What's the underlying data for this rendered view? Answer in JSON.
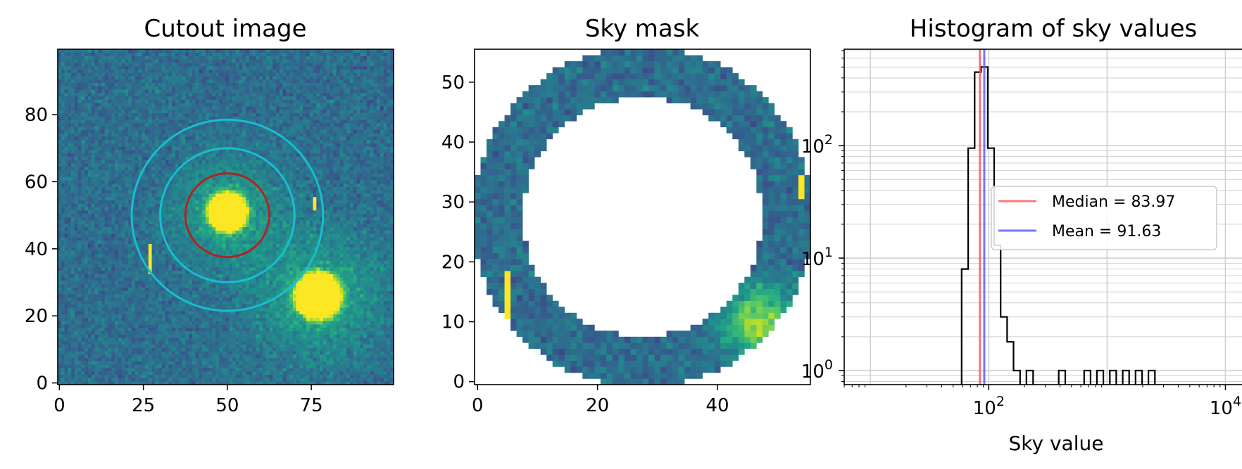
{
  "chart_data": [
    {
      "type": "heatmap",
      "title": "Cutout image",
      "xlim": [
        0,
        99
      ],
      "ylim": [
        0,
        99
      ],
      "x_ticks": [
        "0",
        "25",
        "50",
        "75"
      ],
      "x_tick_values": [
        0,
        25,
        50,
        75
      ],
      "y_ticks": [
        "0",
        "20",
        "40",
        "60",
        "80"
      ],
      "y_tick_values": [
        0,
        20,
        40,
        60,
        80
      ],
      "colormap": "viridis",
      "sources": [
        {
          "x": 50,
          "y": 51,
          "radius": 7.5
        },
        {
          "x": 77,
          "y": 26,
          "radius": 9
        }
      ],
      "apertures": [
        {
          "x": 50,
          "y": 50,
          "radius": 12.5,
          "color": "#b22222"
        },
        {
          "x": 50,
          "y": 50,
          "radius": 20,
          "color": "#17becf"
        },
        {
          "x": 50,
          "y": 50,
          "radius": 28.5,
          "color": "#17becf"
        }
      ],
      "artifacts": [
        {
          "x": 27,
          "y0": 33,
          "y1": 41
        },
        {
          "x": 76,
          "y0": 52,
          "y1": 55
        }
      ]
    },
    {
      "type": "heatmap",
      "title": "Sky mask",
      "xlim": [
        0,
        56
      ],
      "ylim": [
        0,
        56
      ],
      "x_ticks": [
        "0",
        "20",
        "40"
      ],
      "x_tick_values": [
        0,
        20,
        40
      ],
      "y_ticks": [
        "0",
        "10",
        "20",
        "30",
        "40",
        "50"
      ],
      "y_tick_values": [
        0,
        10,
        20,
        30,
        40,
        50
      ],
      "colormap": "viridis",
      "annulus": {
        "cx": 28,
        "cy": 28,
        "r_inner": 20,
        "r_outer": 28.5
      },
      "artifacts": [
        {
          "x": 5,
          "y0": 11,
          "y1": 18
        },
        {
          "x": 54,
          "y0": 31,
          "y1": 34
        }
      ]
    },
    {
      "type": "histogram",
      "title": "Histogram of sky values",
      "xlabel": "Sky value",
      "ylabel": "",
      "x_scale": "log",
      "y_scale": "log",
      "xlim": [
        6,
        14000
      ],
      "ylim": [
        0.75,
        720
      ],
      "x_ticks": [
        {
          "value": 100,
          "base": "10",
          "exp": "2"
        },
        {
          "value": 10000,
          "base": "10",
          "exp": "4"
        }
      ],
      "y_ticks": [
        {
          "value": 1,
          "base": "10",
          "exp": "0"
        },
        {
          "value": 10,
          "base": "10",
          "exp": "1"
        },
        {
          "value": 100,
          "base": "10",
          "exp": "2"
        }
      ],
      "grid": true,
      "bins": [
        {
          "x0": 59,
          "x1": 67,
          "count": 8
        },
        {
          "x0": 67,
          "x1": 76,
          "count": 95
        },
        {
          "x0": 76,
          "x1": 86,
          "count": 450
        },
        {
          "x0": 86,
          "x1": 98,
          "count": 500
        },
        {
          "x0": 98,
          "x1": 111,
          "count": 95
        },
        {
          "x0": 111,
          "x1": 126,
          "count": 13
        },
        {
          "x0": 126,
          "x1": 143,
          "count": 3
        },
        {
          "x0": 143,
          "x1": 162,
          "count": 1.8
        },
        {
          "x0": 162,
          "x1": 184,
          "count": 1
        },
        {
          "x0": 208,
          "x1": 237,
          "count": 1
        },
        {
          "x0": 390,
          "x1": 443,
          "count": 1
        },
        {
          "x0": 640,
          "x1": 725,
          "count": 1
        },
        {
          "x0": 820,
          "x1": 930,
          "count": 1
        },
        {
          "x0": 1055,
          "x1": 1195,
          "count": 1
        },
        {
          "x0": 1355,
          "x1": 1535,
          "count": 1
        },
        {
          "x0": 1740,
          "x1": 1975,
          "count": 1
        },
        {
          "x0": 2235,
          "x1": 2535,
          "count": 1
        }
      ],
      "vlines": [
        {
          "name": "Median = 83.97",
          "value": 83.97,
          "color": "#ff5555"
        },
        {
          "name": "Mean = 91.63",
          "value": 91.63,
          "color": "#5555ff"
        }
      ],
      "legend_placement": "center-right"
    }
  ]
}
